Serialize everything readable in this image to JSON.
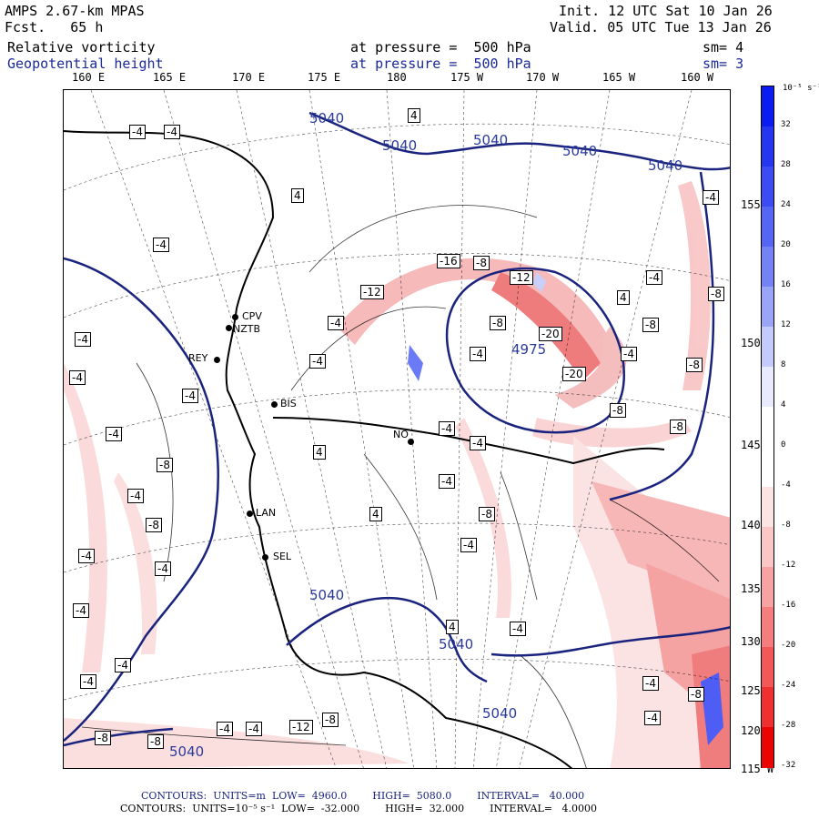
{
  "header": {
    "model": "AMPS 2.67-km MPAS",
    "forecast": "Fcst.   65 h",
    "init": "Init. 12 UTC Sat 10 Jan 26",
    "valid": "Valid. 05 UTC Tue 13 Jan 26",
    "field1_name": "Relative vorticity",
    "field1_level": "at pressure =  500 hPa",
    "field1_sm": "sm= 4",
    "field2_name": "Geopotential height",
    "field2_level": "at pressure =  500 hPa",
    "field2_sm": "sm= 3"
  },
  "longitude_labels": [
    "160 E",
    "165 E",
    "170 E",
    "175 E",
    "180",
    "175 W",
    "170 W",
    "165 W",
    "160 W"
  ],
  "latitude_labels": [
    "155",
    "150",
    "145",
    "140",
    "135",
    "130",
    "125",
    "120",
    "115"
  ],
  "latitude_suffix": "W",
  "colorbar": {
    "units": "10⁻⁵ s⁻¹",
    "labels": [
      "32",
      "28",
      "24",
      "20",
      "16",
      "12",
      "8",
      "4",
      "0",
      "-4",
      "-8",
      "-12",
      "-16",
      "-20",
      "-24",
      "-28",
      "-32"
    ],
    "colors": [
      "#0b1cf0",
      "#2436f0",
      "#3b4cf2",
      "#5566f4",
      "#7482f6",
      "#9aa5f8",
      "#c4cafb",
      "#e8eafd",
      "#ffffff",
      "#ffffff",
      "#fde4e4",
      "#fbc6c6",
      "#f8a3a3",
      "#f57d7d",
      "#f25858",
      "#ef3030",
      "#ea0505"
    ]
  },
  "stations": [
    "CPV",
    "NZTB",
    "REY",
    "BIS",
    "LAN",
    "SEL",
    "NO"
  ],
  "height_labels": [
    "5040",
    "5040",
    "5040",
    "5040",
    "5040",
    "4975",
    "5040",
    "5040",
    "5040",
    "5040"
  ],
  "vorticity_labels": [
    "-4",
    "-4",
    "4",
    "4",
    "-4",
    "-16",
    "-8",
    "-12",
    "-12",
    "-8",
    "-4",
    "-4",
    "4",
    "-4",
    "-8",
    "-8",
    "-20",
    "-20",
    "-4",
    "-4",
    "-4",
    "-4",
    "-8",
    "-4",
    "-8",
    "-8",
    "-8",
    "-4",
    "-4",
    "4",
    "-4",
    "-4",
    "-4",
    "-4",
    "4",
    "-8",
    "-4",
    "-4",
    "-8",
    "-4",
    "-4",
    "4",
    "-4",
    "-12",
    "-8",
    "-4",
    "-8",
    "-8",
    "-4",
    "-4",
    "-4",
    "-8",
    "-4",
    "-4"
  ],
  "footer": {
    "line1": "CONTOURS:  UNITS=m  LOW=  4960.0        HIGH=  5080.0        INTERVAL=   40.000",
    "line2": "CONTOURS:  UNITS=10⁻⁵ s⁻¹  LOW=  -32.000        HIGH=  32.000        INTERVAL=   4.0000"
  },
  "colors": {
    "height_contour": "#1a237e",
    "negative_fill": "#f4a6a6",
    "positive_fill": "#5b6cf5"
  }
}
